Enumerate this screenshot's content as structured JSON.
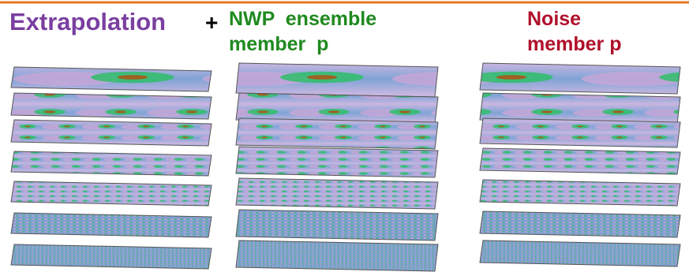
{
  "header": {
    "extrapolation": "Extrapolation",
    "plus": "+",
    "nwp": [
      "NWP  ensemble",
      "member  p"
    ],
    "noise": [
      "Noise",
      "member p"
    ]
  }
}
